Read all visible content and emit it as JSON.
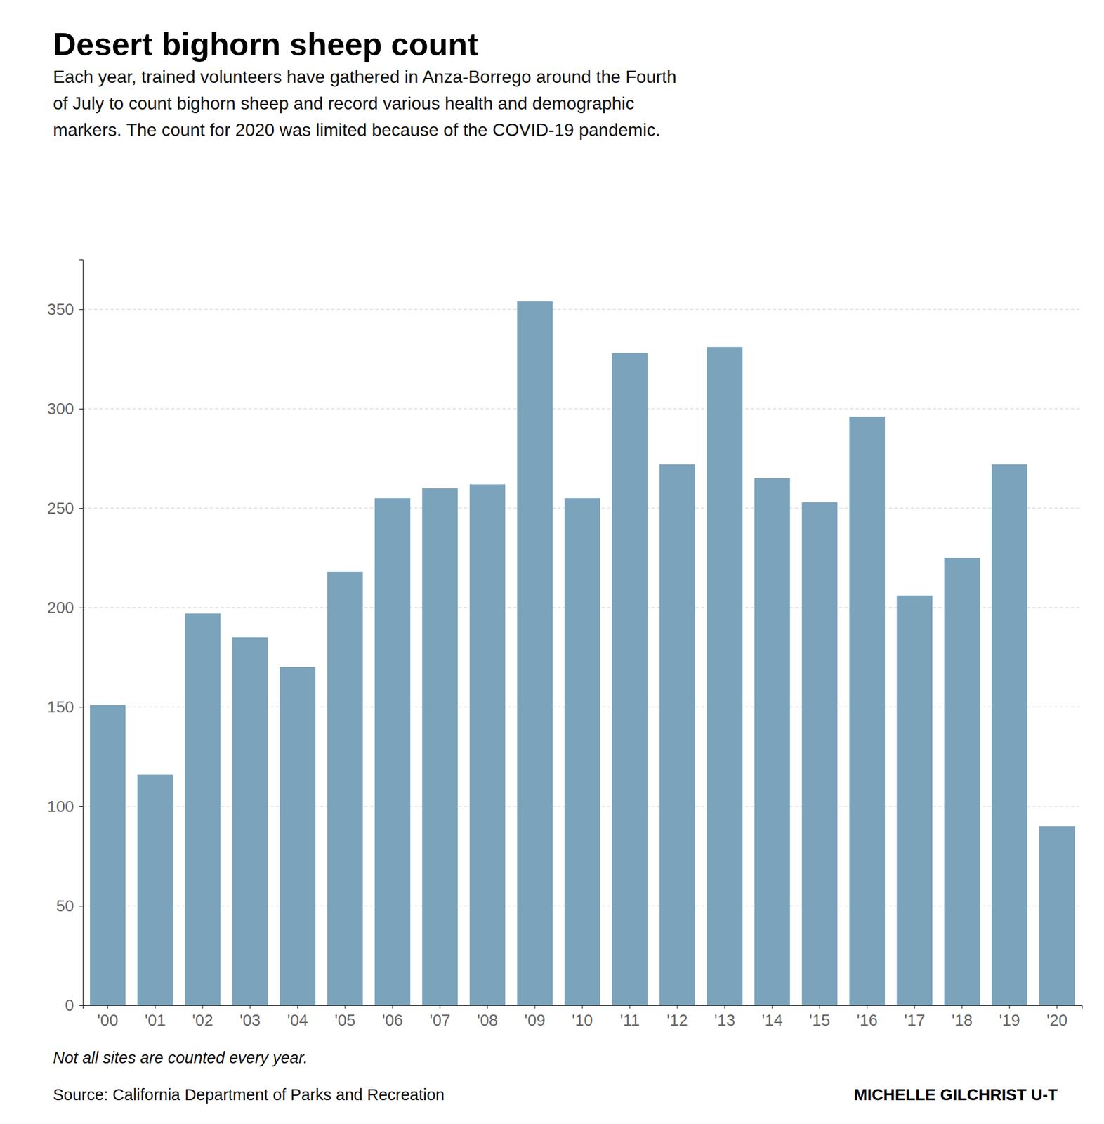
{
  "chart_data": {
    "type": "bar",
    "title": "Desert bighorn sheep count",
    "subtitle": "Each year, trained volunteers have gathered in Anza-Borrego around the Fourth\nof July to count bighorn sheep and record various health and demographic\nmarkers. The count for 2020 was limited because of the COVID-19 pandemic.",
    "categories": [
      "'00",
      "'01",
      "'02",
      "'03",
      "'04",
      "'05",
      "'06",
      "'07",
      "'08",
      "'09",
      "'10",
      "'11",
      "'12",
      "'13",
      "'14",
      "'15",
      "'16",
      "'17",
      "'18",
      "'19",
      "'20"
    ],
    "values": [
      151,
      116,
      197,
      185,
      170,
      218,
      255,
      260,
      262,
      354,
      255,
      328,
      272,
      331,
      265,
      253,
      296,
      206,
      225,
      272,
      90
    ],
    "color": "#7ba3bc",
    "ylim": [
      0,
      375
    ],
    "yticks": [
      0,
      50,
      100,
      150,
      200,
      250,
      300,
      350
    ],
    "grid": true,
    "footnote": "Not all sites are counted every year.",
    "source": "Source: California Department of Parks and Recreation",
    "credit": "MICHELLE GILCHRIST U-T"
  }
}
